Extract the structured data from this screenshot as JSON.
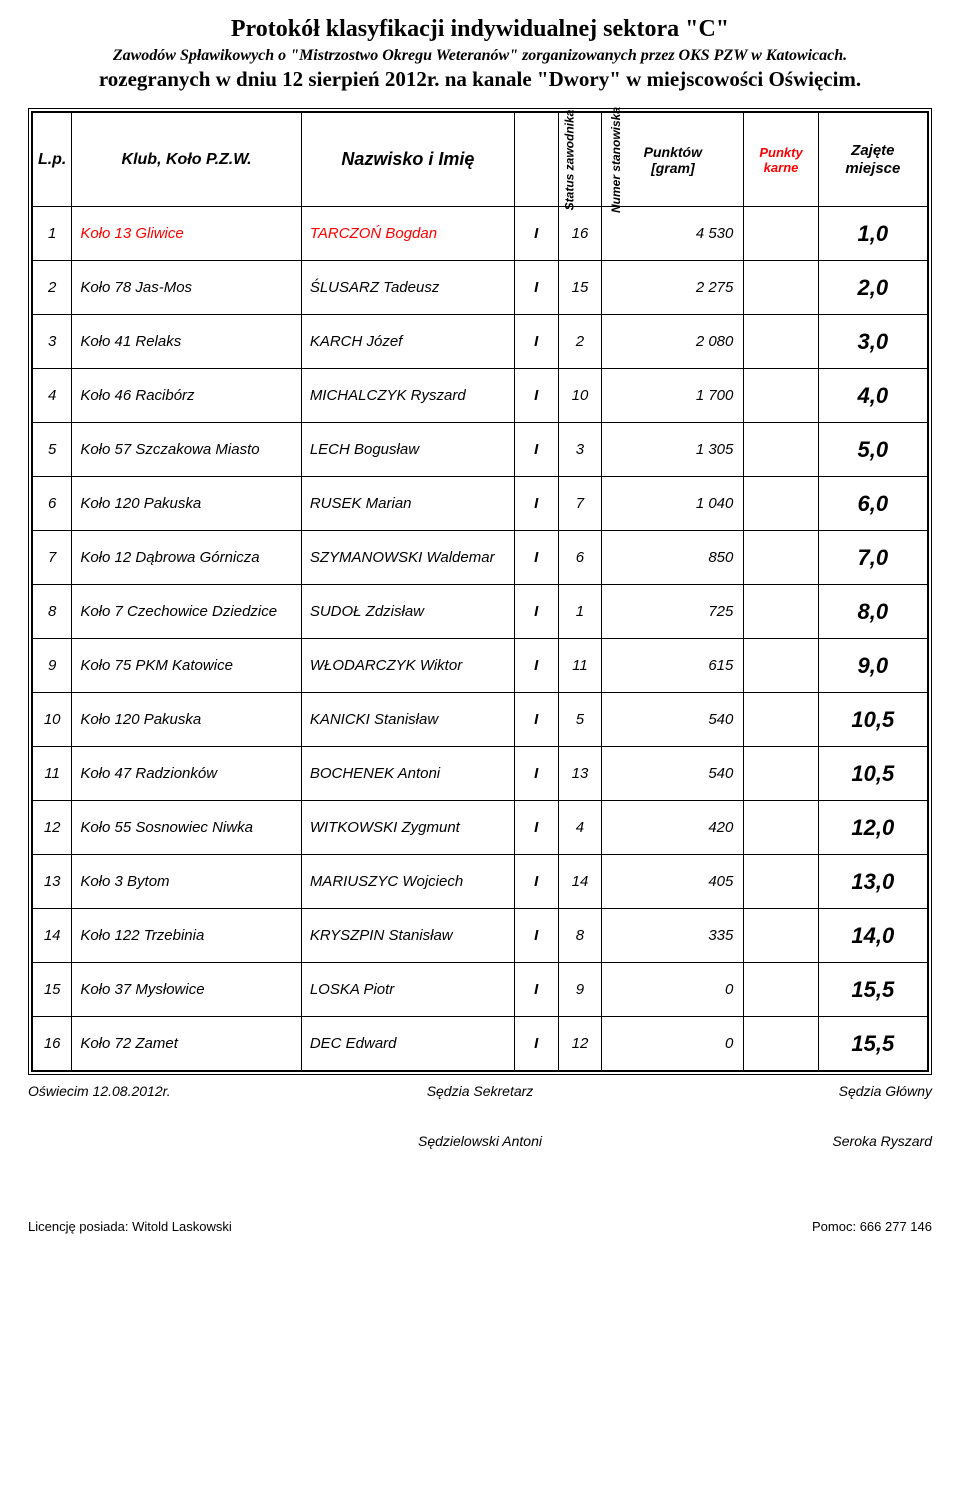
{
  "header": {
    "line1": "Protokół klasyfikacji indywidualnej sektora \"C\"",
    "line2": "Zawodów Spławikowych o  \"Mistrzostwo Okregu Weteranów\" zorganizowanych przez OKS PZW w Katowicach.",
    "line3": "rozegranych w dniu 12 sierpień 2012r. na kanale \"Dwory\" w miejscowości Oświęcim."
  },
  "columns": {
    "lp": "L.p.",
    "klub": "Klub, Koło P.Z.W.",
    "naz": "Nazwisko i Imię",
    "status": "Status zawodnika",
    "stan": "Numer stanowiska",
    "punktow_l1": "Punktów",
    "punktow_l2": "[gram]",
    "karne_l1": "Punkty",
    "karne_l2": "karne",
    "miejsce_l1": "Zajęte",
    "miejsce_l2": "miejsce"
  },
  "rows": [
    {
      "lp": "1",
      "klub": "Koło 13 Gliwice",
      "name": "TARCZOŃ Bogdan",
      "status": "I",
      "stan": "16",
      "punktow": "4 530",
      "karne": "",
      "miejsce": "1,0"
    },
    {
      "lp": "2",
      "klub": "Koło 78 Jas-Mos",
      "name": "ŚLUSARZ Tadeusz",
      "status": "I",
      "stan": "15",
      "punktow": "2 275",
      "karne": "",
      "miejsce": "2,0"
    },
    {
      "lp": "3",
      "klub": "Koło 41 Relaks",
      "name": "KARCH Józef",
      "status": "I",
      "stan": "2",
      "punktow": "2 080",
      "karne": "",
      "miejsce": "3,0"
    },
    {
      "lp": "4",
      "klub": "Koło 46 Racibórz",
      "name": "MICHALCZYK Ryszard",
      "status": "I",
      "stan": "10",
      "punktow": "1 700",
      "karne": "",
      "miejsce": "4,0"
    },
    {
      "lp": "5",
      "klub": "Koło 57 Szczakowa Miasto",
      "name": "LECH Bogusław",
      "status": "I",
      "stan": "3",
      "punktow": "1 305",
      "karne": "",
      "miejsce": "5,0"
    },
    {
      "lp": "6",
      "klub": "Koło 120 Pakuska",
      "name": "RUSEK Marian",
      "status": "I",
      "stan": "7",
      "punktow": "1 040",
      "karne": "",
      "miejsce": "6,0"
    },
    {
      "lp": "7",
      "klub": "Koło 12 Dąbrowa Górnicza",
      "name": "SZYMANOWSKI Waldemar",
      "status": "I",
      "stan": "6",
      "punktow": "850",
      "karne": "",
      "miejsce": "7,0"
    },
    {
      "lp": "8",
      "klub": "Koło 7 Czechowice Dziedzice",
      "name": "SUDOŁ Zdzisław",
      "status": "I",
      "stan": "1",
      "punktow": "725",
      "karne": "",
      "miejsce": "8,0"
    },
    {
      "lp": "9",
      "klub": "Koło 75 PKM Katowice",
      "name": "WŁODARCZYK Wiktor",
      "status": "I",
      "stan": "11",
      "punktow": "615",
      "karne": "",
      "miejsce": "9,0"
    },
    {
      "lp": "10",
      "klub": "Koło 120 Pakuska",
      "name": "KANICKI Stanisław",
      "status": "I",
      "stan": "5",
      "punktow": "540",
      "karne": "",
      "miejsce": "10,5"
    },
    {
      "lp": "11",
      "klub": "Koło 47 Radzionków",
      "name": "BOCHENEK Antoni",
      "status": "I",
      "stan": "13",
      "punktow": "540",
      "karne": "",
      "miejsce": "10,5"
    },
    {
      "lp": "12",
      "klub": "Koło 55 Sosnowiec Niwka",
      "name": "WITKOWSKI Zygmunt",
      "status": "I",
      "stan": "4",
      "punktow": "420",
      "karne": "",
      "miejsce": "12,0"
    },
    {
      "lp": "13",
      "klub": "Koło 3 Bytom",
      "name": "MARIUSZYC Wojciech",
      "status": "I",
      "stan": "14",
      "punktow": "405",
      "karne": "",
      "miejsce": "13,0"
    },
    {
      "lp": "14",
      "klub": "Koło 122 Trzebinia",
      "name": "KRYSZPIN Stanisław",
      "status": "I",
      "stan": "8",
      "punktow": "335",
      "karne": "",
      "miejsce": "14,0"
    },
    {
      "lp": "15",
      "klub": "Koło 37 Mysłowice",
      "name": "LOSKA Piotr",
      "status": "I",
      "stan": "9",
      "punktow": "0",
      "karne": "",
      "miejsce": "15,5"
    },
    {
      "lp": "16",
      "klub": "Koło 72 Zamet",
      "name": "DEC Edward",
      "status": "I",
      "stan": "12",
      "punktow": "0",
      "karne": "",
      "miejsce": "15,5"
    }
  ],
  "signatures": {
    "place_date": "Oświecim 12.08.2012r.",
    "sekretarz_label": "Sędzia Sekretarz",
    "glowny_label": "Sędzia Główny",
    "sekretarz_name": "Sędzielowski Antoni",
    "glowny_name": "Seroka Ryszard"
  },
  "footer": {
    "left": "Licencję posiada: Witold Laskowski",
    "right": "Pomoc: 666 277 146"
  },
  "style": {
    "red": "#f00",
    "black": "#000",
    "font_body": "Arial",
    "font_header": "Times New Roman"
  }
}
